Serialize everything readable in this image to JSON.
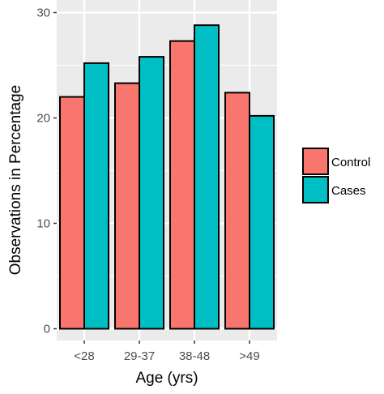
{
  "chart_data": {
    "type": "bar",
    "categories": [
      "<28",
      "29-37",
      "38-48",
      ">49"
    ],
    "series": [
      {
        "name": "Control",
        "values": [
          22.0,
          23.3,
          27.3,
          22.4
        ]
      },
      {
        "name": "Cases",
        "values": [
          25.2,
          25.8,
          28.8,
          20.2
        ]
      }
    ],
    "xlabel": "Age (yrs)",
    "ylabel": "Observations in Percentage",
    "ylim": [
      0,
      30
    ],
    "yticks": [
      0,
      10,
      20,
      30
    ],
    "grid": true,
    "legend_position": "right"
  },
  "colors": {
    "panel_background": "#ebebeb",
    "grid": "#ffffff",
    "Control": "#f8766d",
    "Cases": "#00bfc4",
    "bar_outline": "#000000"
  }
}
